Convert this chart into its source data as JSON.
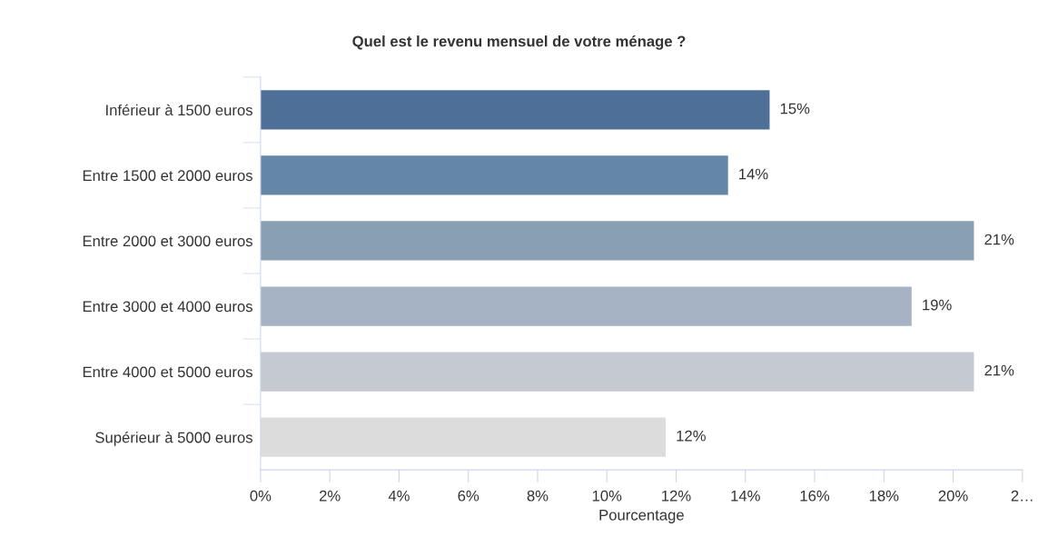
{
  "chart_data": {
    "type": "bar",
    "orientation": "horizontal",
    "title": "Quel est le revenu mensuel de votre ménage ?",
    "xlabel": "Pourcentage",
    "categories": [
      "Inférieur à 1500 euros",
      "Entre 1500 et 2000 euros",
      "Entre 2000 et 3000 euros",
      "Entre 3000 et 4000 euros",
      "Entre 4000 et 5000 euros",
      "Supérieur à 5000 euros"
    ],
    "values": [
      14.7,
      13.5,
      20.6,
      18.8,
      20.6,
      11.7
    ],
    "value_labels": [
      "15%",
      "14%",
      "21%",
      "19%",
      "21%",
      "12%"
    ],
    "colors": [
      "#4e7098",
      "#6487a8",
      "#889fb4",
      "#a5b3c4",
      "#c4c9d2",
      "#dcdcdc"
    ],
    "xlim": [
      0,
      22
    ],
    "xticks": [
      {
        "value": 0,
        "label": "0%"
      },
      {
        "value": 2,
        "label": "2%"
      },
      {
        "value": 4,
        "label": "4%"
      },
      {
        "value": 6,
        "label": "6%"
      },
      {
        "value": 8,
        "label": "8%"
      },
      {
        "value": 10,
        "label": "10%"
      },
      {
        "value": 12,
        "label": "12%"
      },
      {
        "value": 14,
        "label": "14%"
      },
      {
        "value": 16,
        "label": "16%"
      },
      {
        "value": 18,
        "label": "18%"
      },
      {
        "value": 20,
        "label": "20%"
      },
      {
        "value": 22,
        "label": "2…"
      }
    ],
    "grid": false,
    "legend": false
  }
}
